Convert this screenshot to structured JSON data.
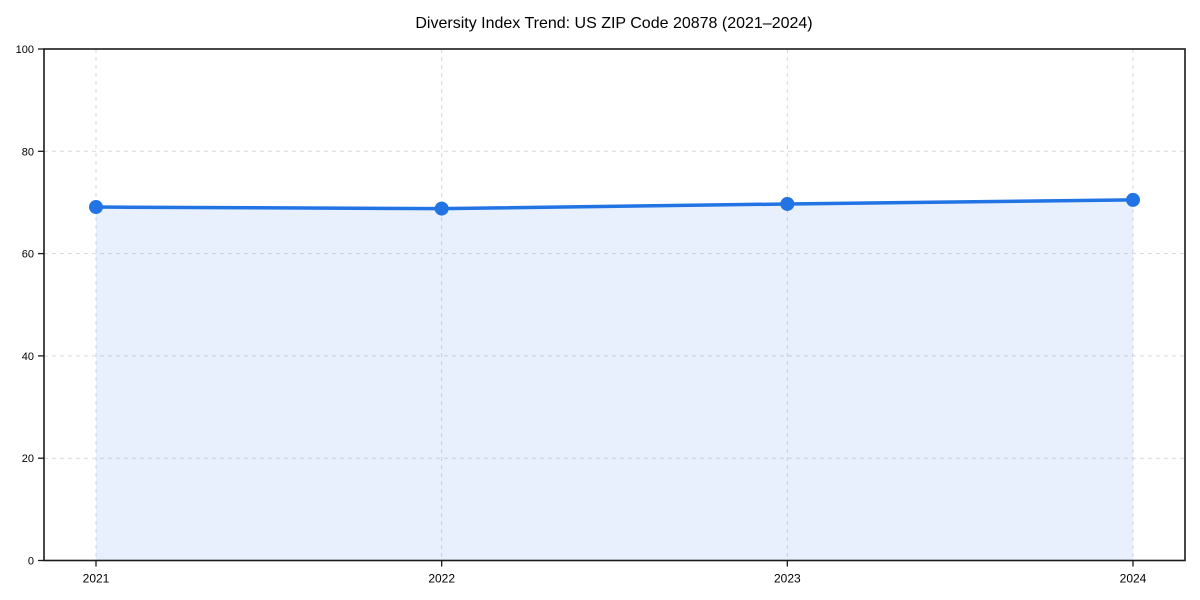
{
  "figure": {
    "background_color": "#ffffff"
  },
  "chart_data": {
    "type": "line",
    "title": "Diversity Index Trend: US ZIP Code 20878 (2021–2024)",
    "x": [
      "2021",
      "2022",
      "2023",
      "2024"
    ],
    "values": [
      69.1,
      68.8,
      69.7,
      70.5
    ],
    "xlabel": "",
    "ylabel": "",
    "ylim": [
      0,
      100
    ],
    "yticks": [
      0,
      20,
      40,
      60,
      80,
      100
    ],
    "grid": true,
    "grid_style": "dashed",
    "legend": "none",
    "colors": {
      "line": "#2274e4",
      "marker": "#2274e4",
      "area_fill": "rgba(34,116,228,0.11)",
      "grid": "#d9d9d9",
      "axis": "#1a1a1a",
      "text": "#000000"
    }
  }
}
